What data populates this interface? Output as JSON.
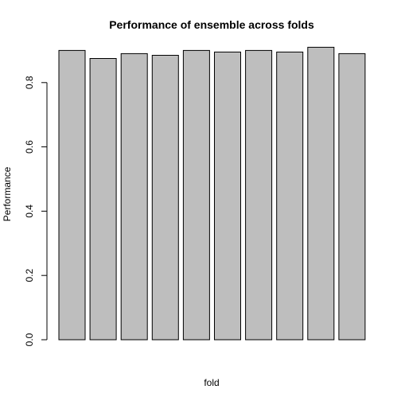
{
  "chart_data": {
    "type": "bar",
    "title": "Performance of ensemble across folds",
    "xlabel": "fold",
    "ylabel": "Performance",
    "categories": [
      "",
      "",
      "",
      "",
      "",
      "",
      "",
      "",
      "",
      ""
    ],
    "values": [
      0.9,
      0.875,
      0.89,
      0.885,
      0.9,
      0.895,
      0.9,
      0.895,
      0.91,
      0.89
    ],
    "ylim": [
      0,
      0.91
    ],
    "yticks": [
      0.0,
      0.2,
      0.4,
      0.6,
      0.8
    ],
    "ytick_labels": [
      "0.0",
      "0.2",
      "0.4",
      "0.6",
      "0.8"
    ],
    "grid": false,
    "legend": "none",
    "bar_fill": "#bebebe",
    "bar_stroke": "#000000"
  }
}
